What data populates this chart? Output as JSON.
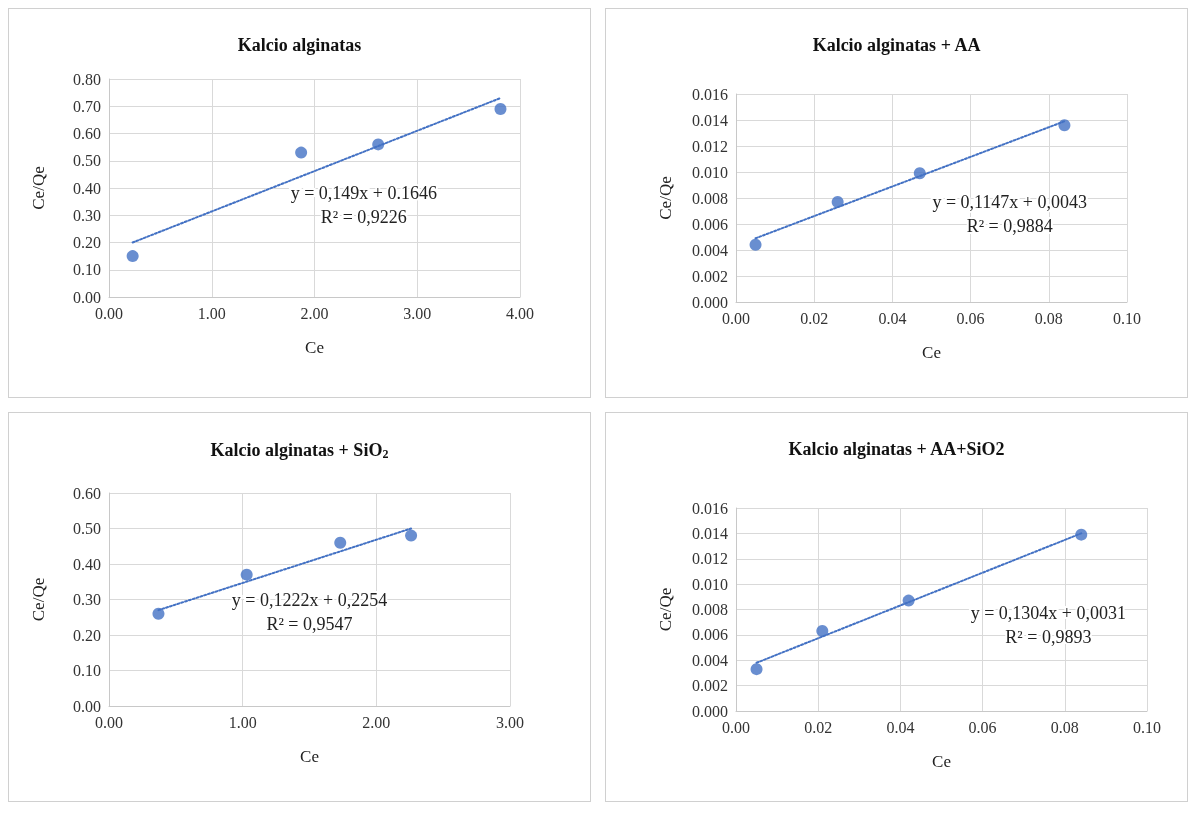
{
  "chart_data": [
    {
      "type": "scatter",
      "title": "Kalcio alginatas",
      "xlabel": "Ce",
      "ylabel": "Ce/Qe",
      "grid": true,
      "marker": "circle",
      "xlim": [
        0,
        4
      ],
      "xticks": [
        {
          "value": 0,
          "label": "0.00"
        },
        {
          "value": 1,
          "label": "1.00"
        },
        {
          "value": 2,
          "label": "2.00"
        },
        {
          "value": 3,
          "label": "3.00"
        },
        {
          "value": 4,
          "label": "4.00"
        }
      ],
      "ylim": [
        0,
        0.8
      ],
      "yticks": [
        {
          "value": 0,
          "label": "0.00"
        },
        {
          "value": 0.1,
          "label": "0.10"
        },
        {
          "value": 0.2,
          "label": "0.20"
        },
        {
          "value": 0.3,
          "label": "0.30"
        },
        {
          "value": 0.4,
          "label": "0.40"
        },
        {
          "value": 0.5,
          "label": "0.50"
        },
        {
          "value": 0.6,
          "label": "0.60"
        },
        {
          "value": 0.7,
          "label": "0.70"
        },
        {
          "value": 0.8,
          "label": "0.80"
        }
      ],
      "series": [
        {
          "type": "scatter",
          "color": "#4472c4",
          "x": [
            0.23,
            1.87,
            2.62,
            3.81
          ],
          "values": [
            0.15,
            0.53,
            0.56,
            0.69
          ]
        },
        {
          "type": "line",
          "color": "#4472c4",
          "line_style": "dotted",
          "marker": "none",
          "x": [
            0.23,
            3.81
          ],
          "values": [
            0.2,
            0.73
          ]
        }
      ],
      "annotations": [
        "y = 0,149x + 0.1646",
        "R² = 0,9226"
      ]
    },
    {
      "type": "scatter",
      "title": "Kalcio alginatas + AA",
      "xlabel": "Ce",
      "ylabel": "Ce/Qe",
      "grid": true,
      "marker": "circle",
      "xlim": [
        0,
        0.1
      ],
      "xticks": [
        {
          "value": 0,
          "label": "0.00"
        },
        {
          "value": 0.02,
          "label": "0.02"
        },
        {
          "value": 0.04,
          "label": "0.04"
        },
        {
          "value": 0.06,
          "label": "0.06"
        },
        {
          "value": 0.08,
          "label": "0.08"
        },
        {
          "value": 0.1,
          "label": "0.10"
        }
      ],
      "ylim": [
        0,
        0.016
      ],
      "yticks": [
        {
          "value": 0,
          "label": "0.000"
        },
        {
          "value": 0.002,
          "label": "0.002"
        },
        {
          "value": 0.004,
          "label": "0.004"
        },
        {
          "value": 0.006,
          "label": "0.006"
        },
        {
          "value": 0.008,
          "label": "0.008"
        },
        {
          "value": 0.01,
          "label": "0.010"
        },
        {
          "value": 0.012,
          "label": "0.012"
        },
        {
          "value": 0.014,
          "label": "0.014"
        },
        {
          "value": 0.016,
          "label": "0.016"
        }
      ],
      "series": [
        {
          "type": "scatter",
          "color": "#4472c4",
          "x": [
            0.005,
            0.026,
            0.047,
            0.084
          ],
          "values": [
            0.0044,
            0.0077,
            0.0099,
            0.0136
          ]
        },
        {
          "type": "line",
          "color": "#4472c4",
          "line_style": "dotted",
          "marker": "none",
          "x": [
            0.005,
            0.084
          ],
          "values": [
            0.0049,
            0.0139
          ]
        }
      ],
      "annotations": [
        "y = 0,1147x + 0,0043",
        "R² = 0,9884"
      ]
    },
    {
      "type": "scatter",
      "title": "Kalcio alginatas + SiO$_{2}$",
      "xlabel": "Ce",
      "ylabel": "Ce/Qe",
      "grid": true,
      "marker": "circle",
      "xlim": [
        0,
        3
      ],
      "xticks": [
        {
          "value": 0,
          "label": "0.00"
        },
        {
          "value": 1,
          "label": "1.00"
        },
        {
          "value": 2,
          "label": "2.00"
        },
        {
          "value": 3,
          "label": "3.00"
        }
      ],
      "ylim": [
        0,
        0.6
      ],
      "yticks": [
        {
          "value": 0,
          "label": "0.00"
        },
        {
          "value": 0.1,
          "label": "0.10"
        },
        {
          "value": 0.2,
          "label": "0.20"
        },
        {
          "value": 0.3,
          "label": "0.30"
        },
        {
          "value": 0.4,
          "label": "0.40"
        },
        {
          "value": 0.5,
          "label": "0.50"
        },
        {
          "value": 0.6,
          "label": "0.60"
        }
      ],
      "series": [
        {
          "type": "scatter",
          "color": "#4472c4",
          "x": [
            0.37,
            1.03,
            1.73,
            2.26
          ],
          "values": [
            0.26,
            0.37,
            0.46,
            0.48
          ]
        },
        {
          "type": "line",
          "color": "#4472c4",
          "line_style": "dotted",
          "marker": "none",
          "x": [
            0.37,
            2.26
          ],
          "values": [
            0.27,
            0.5
          ]
        }
      ],
      "annotations": [
        "y = 0,1222x + 0,2254",
        "R² = 0,9547"
      ]
    },
    {
      "type": "scatter",
      "title": "Kalcio alginatas + AA+SiO2",
      "xlabel": "Ce",
      "ylabel": "Ce/Qe",
      "grid": true,
      "marker": "circle",
      "xlim": [
        0,
        0.1
      ],
      "xticks": [
        {
          "value": 0,
          "label": "0.00"
        },
        {
          "value": 0.02,
          "label": "0.02"
        },
        {
          "value": 0.04,
          "label": "0.04"
        },
        {
          "value": 0.06,
          "label": "0.06"
        },
        {
          "value": 0.08,
          "label": "0.08"
        },
        {
          "value": 0.1,
          "label": "0.10"
        }
      ],
      "ylim": [
        0,
        0.016
      ],
      "yticks": [
        {
          "value": 0,
          "label": "0.000"
        },
        {
          "value": 0.002,
          "label": "0.002"
        },
        {
          "value": 0.004,
          "label": "0.004"
        },
        {
          "value": 0.006,
          "label": "0.006"
        },
        {
          "value": 0.008,
          "label": "0.008"
        },
        {
          "value": 0.01,
          "label": "0.010"
        },
        {
          "value": 0.012,
          "label": "0.012"
        },
        {
          "value": 0.014,
          "label": "0.014"
        },
        {
          "value": 0.016,
          "label": "0.016"
        }
      ],
      "series": [
        {
          "type": "scatter",
          "color": "#4472c4",
          "x": [
            0.005,
            0.021,
            0.042,
            0.084
          ],
          "values": [
            0.0033,
            0.0063,
            0.0087,
            0.0139
          ]
        },
        {
          "type": "line",
          "color": "#4472c4",
          "line_style": "dotted",
          "marker": "none",
          "x": [
            0.005,
            0.084
          ],
          "values": [
            0.0038,
            0.014
          ]
        }
      ],
      "annotations": [
        "y = 0,1304x + 0,0031",
        "R² = 0,9893"
      ]
    }
  ]
}
